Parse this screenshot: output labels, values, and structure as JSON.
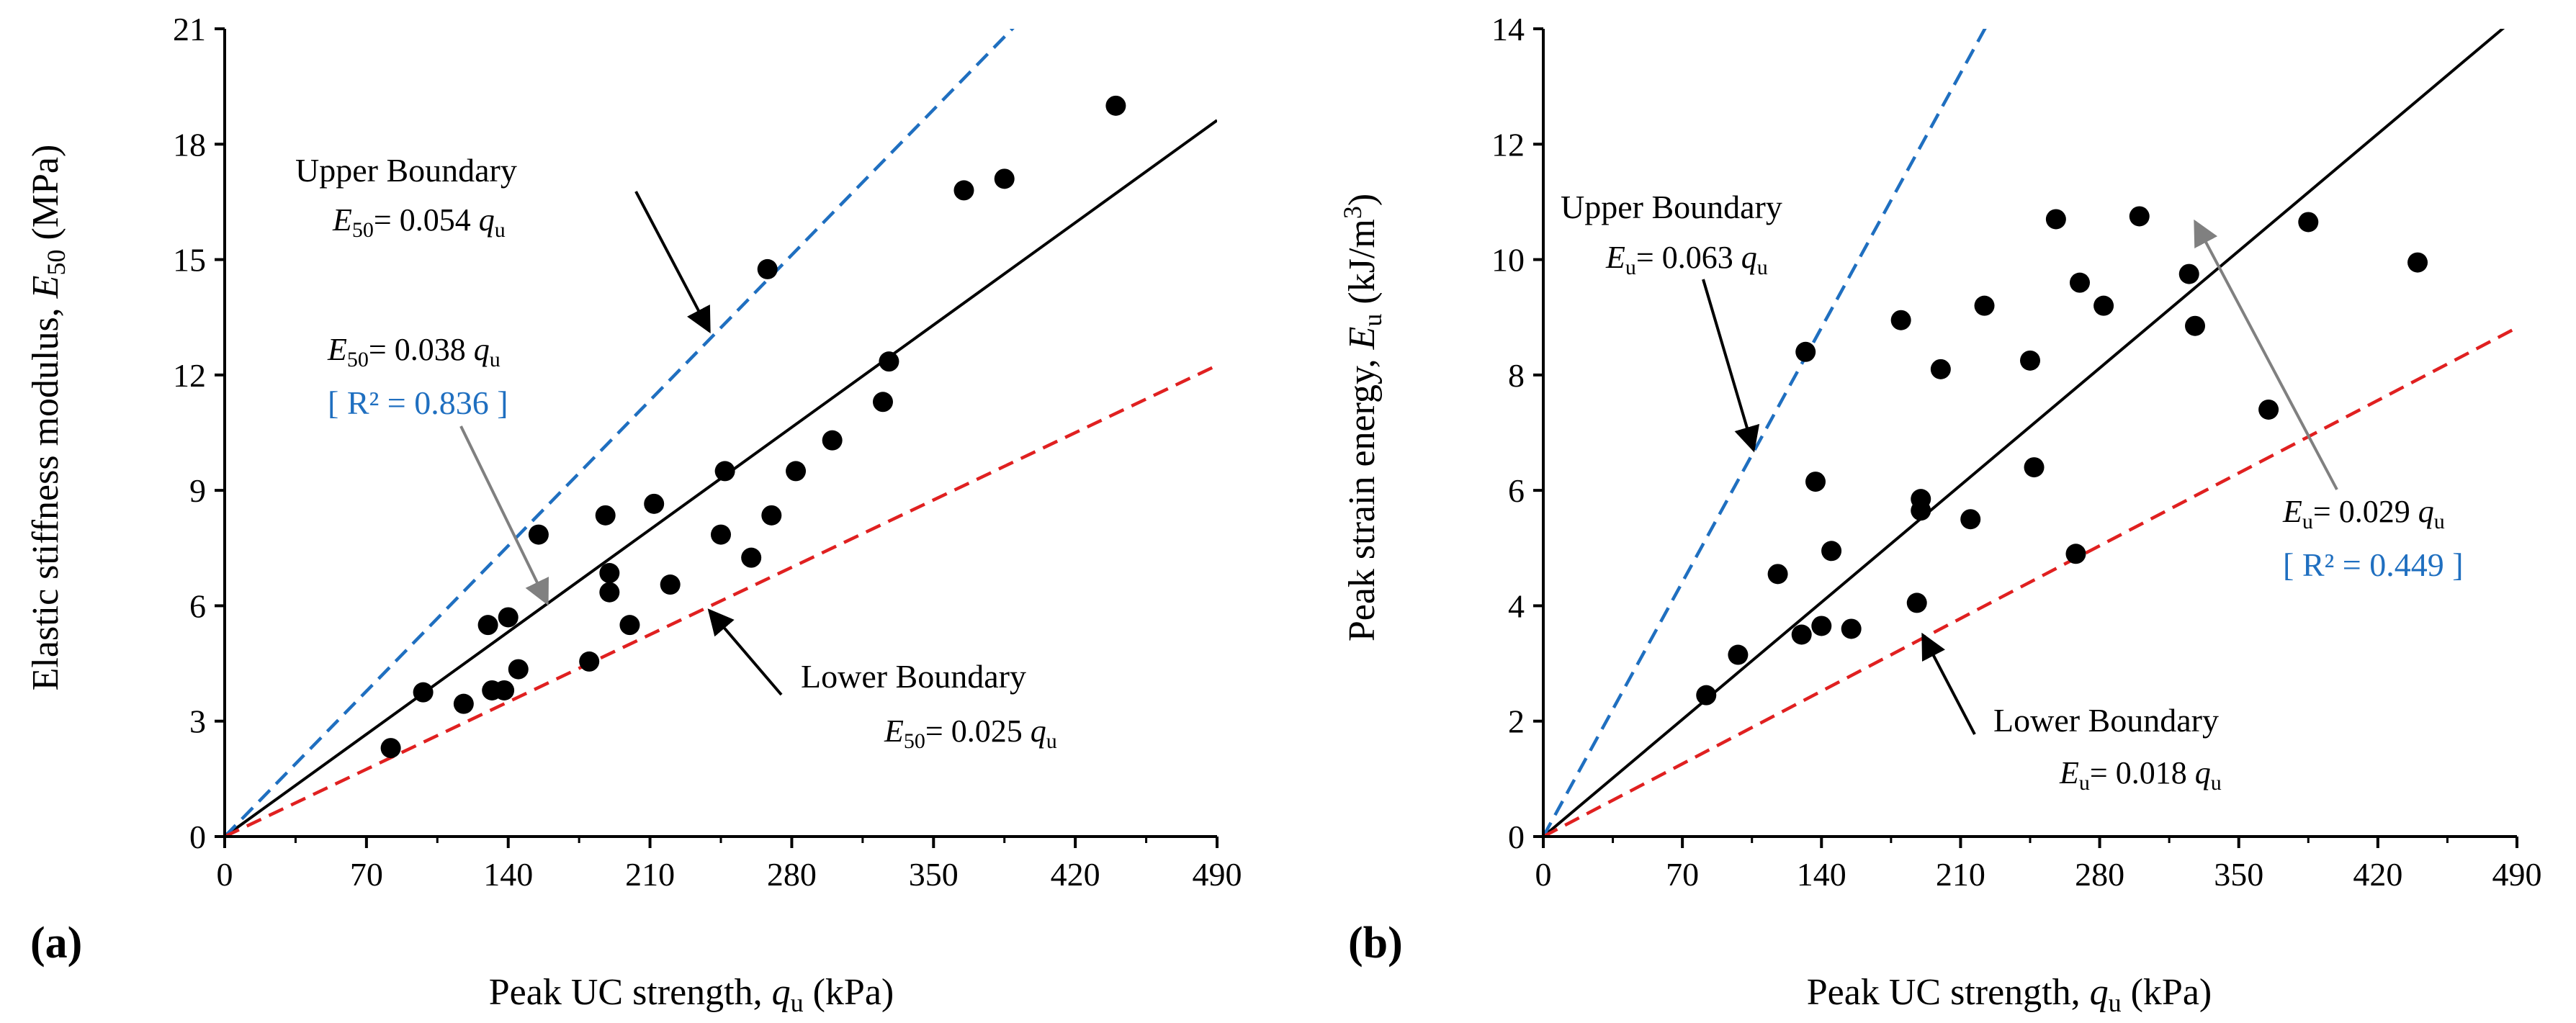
{
  "colors": {
    "points": "#000000",
    "fit_line": "#000000",
    "upper_line": "#1f6fc0",
    "lower_line": "#e02020",
    "r2_text": "#1f6fc0",
    "arrow_gray": "#808080"
  },
  "chart_data": [
    {
      "type": "scatter",
      "panel_label": "(a)",
      "xlabel": "Peak UC strength, q_u (kPa)",
      "xlabel_parts": {
        "pre": "Peak UC strength, ",
        "var": "q",
        "sub": "u",
        "post": " (kPa)"
      },
      "ylabel": "Elastic stiffness modulus, E_50 (MPa)",
      "ylabel_parts": {
        "pre": "Elastic stiffness modulus, ",
        "var": "E",
        "sub": "50",
        "post": " (MPa)"
      },
      "xlim": [
        0,
        490
      ],
      "ylim": [
        0,
        21
      ],
      "x_ticks": [
        "0",
        "70",
        "140",
        "210",
        "280",
        "350",
        "420",
        "490"
      ],
      "y_ticks": [
        "0",
        "3",
        "6",
        "9",
        "12",
        "15",
        "18",
        "21"
      ],
      "grid": false,
      "points": [
        [
          82,
          2.3
        ],
        [
          98,
          3.75
        ],
        [
          118,
          3.45
        ],
        [
          130,
          5.5
        ],
        [
          132,
          3.8
        ],
        [
          138,
          3.8
        ],
        [
          140,
          5.7
        ],
        [
          145,
          4.35
        ],
        [
          155,
          7.85
        ],
        [
          180,
          4.55
        ],
        [
          188,
          8.35
        ],
        [
          190,
          6.85
        ],
        [
          190,
          6.35
        ],
        [
          200,
          5.5
        ],
        [
          212,
          8.65
        ],
        [
          220,
          6.55
        ],
        [
          245,
          7.85
        ],
        [
          247,
          9.5
        ],
        [
          260,
          7.25
        ],
        [
          268,
          14.75
        ],
        [
          270,
          8.35
        ],
        [
          282,
          9.5
        ],
        [
          300,
          10.3
        ],
        [
          325,
          11.3
        ],
        [
          328,
          12.35
        ],
        [
          365,
          16.8
        ],
        [
          385,
          17.1
        ],
        [
          440,
          19.0
        ]
      ],
      "lines": [
        {
          "name": "fit",
          "slope": 0.038,
          "style": "solid",
          "color": "#000000"
        },
        {
          "name": "upper",
          "slope": 0.054,
          "style": "dashed",
          "color": "#1f6fc0"
        },
        {
          "name": "lower",
          "slope": 0.025,
          "style": "dashed",
          "color": "#e02020"
        }
      ],
      "annotations": {
        "upper_title": "Upper Boundary",
        "upper_eq": {
          "var": "E",
          "sub": "50",
          "mid": "= 0.054 ",
          "qvar": "q",
          "qsub": "u"
        },
        "fit_eq": {
          "var": "E",
          "sub": "50",
          "mid": "= 0.038 ",
          "qvar": "q",
          "qsub": "u"
        },
        "fit_r2": "[ R² = 0.836 ]",
        "lower_title": "Lower Boundary",
        "lower_eq": {
          "var": "E",
          "sub": "50",
          "mid": "= 0.025 ",
          "qvar": "q",
          "qsub": "u"
        }
      }
    },
    {
      "type": "scatter",
      "panel_label": "(b)",
      "xlabel": "Peak UC strength, q_u (kPa)",
      "xlabel_parts": {
        "pre": "Peak UC strength, ",
        "var": "q",
        "sub": "u",
        "post": " (kPa)"
      },
      "ylabel": "Peak strain energy, E_u (kJ/m³)",
      "ylabel_parts": {
        "pre": "Peak strain energy, ",
        "var": "E",
        "sub": "u",
        "post": " (kJ/m",
        "sup": "3",
        "post2": ")"
      },
      "xlim": [
        0,
        490
      ],
      "ylim": [
        0,
        14
      ],
      "x_ticks": [
        "0",
        "70",
        "140",
        "210",
        "280",
        "350",
        "420",
        "490"
      ],
      "y_ticks": [
        "0",
        "2",
        "4",
        "6",
        "8",
        "10",
        "12",
        "14"
      ],
      "grid": false,
      "points": [
        [
          82,
          2.45
        ],
        [
          98,
          3.15
        ],
        [
          118,
          4.55
        ],
        [
          130,
          3.5
        ],
        [
          132,
          8.4
        ],
        [
          137,
          6.15
        ],
        [
          140,
          3.65
        ],
        [
          145,
          4.95
        ],
        [
          155,
          3.6
        ],
        [
          180,
          8.95
        ],
        [
          188,
          4.05
        ],
        [
          190,
          5.85
        ],
        [
          190,
          5.65
        ],
        [
          200,
          8.1
        ],
        [
          215,
          5.5
        ],
        [
          222,
          9.2
        ],
        [
          245,
          8.25
        ],
        [
          247,
          6.4
        ],
        [
          258,
          10.7
        ],
        [
          268,
          4.9
        ],
        [
          270,
          9.6
        ],
        [
          282,
          9.2
        ],
        [
          300,
          10.75
        ],
        [
          325,
          9.75
        ],
        [
          328,
          8.85
        ],
        [
          365,
          7.4
        ],
        [
          385,
          10.65
        ],
        [
          440,
          9.95
        ]
      ],
      "lines": [
        {
          "name": "fit",
          "slope": 0.029,
          "style": "solid",
          "color": "#000000"
        },
        {
          "name": "upper",
          "slope": 0.063,
          "style": "dashed",
          "color": "#1f6fc0"
        },
        {
          "name": "lower",
          "slope": 0.018,
          "style": "dashed",
          "color": "#e02020"
        }
      ],
      "annotations": {
        "upper_title": "Upper Boundary",
        "upper_eq": {
          "var": "E",
          "sub": "u",
          "mid": "= 0.063 ",
          "qvar": "q",
          "qsub": "u"
        },
        "fit_eq": {
          "var": "E",
          "sub": "u",
          "mid": "= 0.029 ",
          "qvar": "q",
          "qsub": "u"
        },
        "fit_r2": "[ R² = 0.449 ]",
        "lower_title": "Lower Boundary",
        "lower_eq": {
          "var": "E",
          "sub": "u",
          "mid": "= 0.018 ",
          "qvar": "q",
          "qsub": "u"
        }
      }
    }
  ]
}
